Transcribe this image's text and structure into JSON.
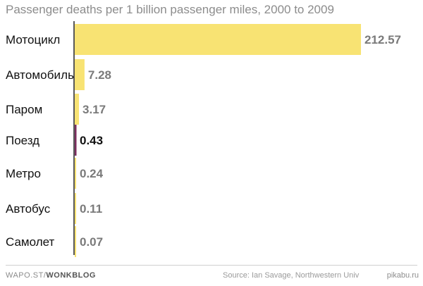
{
  "chart_data": {
    "type": "bar",
    "orientation": "horizontal",
    "title": "Passenger deaths per 1 billion passenger miles, 2000 to 2009",
    "categories": [
      "Мотоцикл",
      "Автомобиль",
      "Паром",
      "Поезд",
      "Метро",
      "Автобус",
      "Самолет"
    ],
    "values": [
      212.57,
      7.28,
      3.17,
      0.43,
      0.24,
      0.11,
      0.07
    ],
    "value_labels": [
      "212.57",
      "7.28",
      "3.17",
      "0.43",
      "0.24",
      "0.11",
      "0.07"
    ],
    "highlight_category": "Поезд",
    "xlim": [
      0,
      212.57
    ],
    "xlabel": "",
    "ylabel": "",
    "grid": false,
    "bar_color": "#f8e373",
    "highlight_color": "#7b2d5e"
  },
  "footer": {
    "site": "WAPO.ST/",
    "brand": "WONKBLOG",
    "source": "Source: Ian Savage, Northwestern Univ"
  },
  "watermark": "pikabu.ru"
}
